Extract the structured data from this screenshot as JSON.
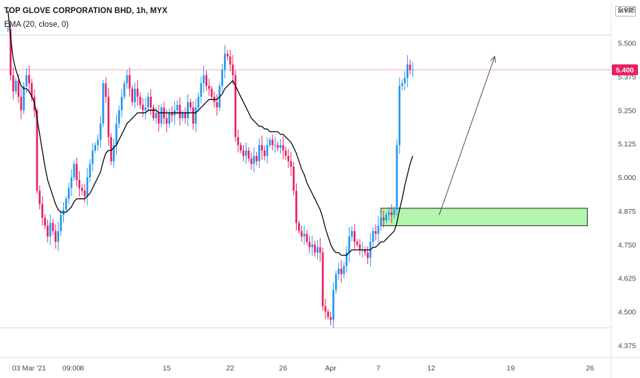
{
  "header": {
    "title": "TOP GLOVE CORPORATION BHD, 1h, MYX",
    "study": "EMA (20, close, 0)"
  },
  "currency_badge": "MYR",
  "colors": {
    "up": "#2196f3",
    "down": "#e91e63",
    "ema": "#000000",
    "zone_fill": "#a5f5a0",
    "price_line": "#f7a8c4",
    "price_label_bg": "#e91e63"
  },
  "chart_data": {
    "type": "candlestick",
    "y_ticks": [
      "5.625",
      "5.500",
      "5.375",
      "5.250",
      "5.125",
      "5.000",
      "4.875",
      "4.750",
      "4.625",
      "4.500",
      "4.375"
    ],
    "y_range": [
      4.33,
      5.66
    ],
    "x_ticks": [
      "03 Mar '21",
      "09:00",
      "8",
      "15",
      "22",
      "26",
      "Apr",
      "7",
      "12",
      "19",
      "26"
    ],
    "x_tick_bars": [
      8,
      24,
      28,
      60,
      84,
      104,
      122,
      140,
      160,
      190,
      220
    ],
    "x_range": [
      -3,
      228
    ],
    "last_price": "5.400",
    "reference_lines": [
      5.53,
      4.44
    ],
    "zone": {
      "start_bar": 141,
      "end_bar": 219,
      "top": 4.885,
      "bottom": 4.82
    },
    "projection_arrow": {
      "from": {
        "bar": 163,
        "price": 4.86
      },
      "to": {
        "bar": 184,
        "price": 5.45
      }
    },
    "series": [
      {
        "name": "Price",
        "values": [
          5.55,
          5.38,
          5.32,
          5.36,
          5.3,
          5.25,
          5.34,
          5.38,
          5.35,
          5.3,
          5.25,
          4.95,
          4.9,
          4.85,
          4.82,
          4.78,
          4.83,
          4.8,
          4.76,
          4.8,
          4.86,
          4.88,
          4.92,
          4.96,
          5.0,
          5.05,
          4.99,
          4.96,
          4.95,
          4.93,
          5.0,
          5.05,
          5.1,
          5.12,
          5.14,
          5.2,
          5.35,
          5.3,
          5.15,
          5.06,
          5.12,
          5.2,
          5.25,
          5.3,
          5.35,
          5.38,
          5.33,
          5.28,
          5.33,
          5.3,
          5.27,
          5.25,
          5.26,
          5.3,
          5.26,
          5.22,
          5.24,
          5.2,
          5.26,
          5.22,
          5.2,
          5.24,
          5.23,
          5.25,
          5.27,
          5.22,
          5.24,
          5.22,
          5.28,
          5.26,
          5.2,
          5.26,
          5.3,
          5.35,
          5.38,
          5.34,
          5.33,
          5.3,
          5.28,
          5.26,
          5.34,
          5.4,
          5.46,
          5.45,
          5.42,
          5.38,
          5.15,
          5.12,
          5.1,
          5.08,
          5.1,
          5.07,
          5.05,
          5.08,
          5.06,
          5.12,
          5.1,
          5.08,
          5.12,
          5.14,
          5.12,
          5.12,
          5.11,
          5.12,
          5.1,
          5.08,
          5.06,
          5.04,
          4.95,
          4.83,
          4.8,
          4.78,
          4.79,
          4.76,
          4.74,
          4.75,
          4.72,
          4.74,
          4.72,
          4.52,
          4.5,
          4.48,
          4.47,
          4.58,
          4.64,
          4.66,
          4.64,
          4.67,
          4.72,
          4.78,
          4.8,
          4.76,
          4.75,
          4.73,
          4.73,
          4.72,
          4.7,
          4.76,
          4.8,
          4.79,
          4.82,
          4.85,
          4.84,
          4.86,
          4.87,
          4.86,
          4.88,
          5.12,
          5.34,
          5.35,
          5.37,
          5.42,
          5.4,
          5.4
        ]
      },
      {
        "name": "EMA (20, close, 0)",
        "values": [
          5.62,
          5.52,
          5.44,
          5.4,
          5.37,
          5.34,
          5.33,
          5.33,
          5.32,
          5.3,
          5.28,
          5.22,
          5.16,
          5.1,
          5.04,
          4.99,
          4.96,
          4.93,
          4.9,
          4.88,
          4.87,
          4.87,
          4.87,
          4.88,
          4.89,
          4.91,
          4.92,
          4.92,
          4.92,
          4.92,
          4.93,
          4.94,
          4.96,
          4.98,
          5.0,
          5.02,
          5.06,
          5.09,
          5.1,
          5.1,
          5.11,
          5.12,
          5.14,
          5.16,
          5.18,
          5.2,
          5.21,
          5.22,
          5.23,
          5.24,
          5.24,
          5.24,
          5.24,
          5.25,
          5.25,
          5.25,
          5.25,
          5.24,
          5.24,
          5.24,
          5.24,
          5.24,
          5.24,
          5.24,
          5.24,
          5.24,
          5.24,
          5.24,
          5.24,
          5.24,
          5.24,
          5.24,
          5.25,
          5.26,
          5.27,
          5.28,
          5.29,
          5.29,
          5.29,
          5.29,
          5.3,
          5.31,
          5.33,
          5.34,
          5.35,
          5.36,
          5.34,
          5.32,
          5.3,
          5.28,
          5.26,
          5.24,
          5.22,
          5.21,
          5.2,
          5.19,
          5.19,
          5.18,
          5.18,
          5.17,
          5.17,
          5.17,
          5.17,
          5.16,
          5.16,
          5.15,
          5.14,
          5.13,
          5.11,
          5.09,
          5.06,
          5.03,
          5.01,
          4.98,
          4.96,
          4.94,
          4.92,
          4.9,
          4.88,
          4.85,
          4.81,
          4.78,
          4.75,
          4.73,
          4.72,
          4.72,
          4.71,
          4.71,
          4.71,
          4.72,
          4.73,
          4.73,
          4.73,
          4.73,
          4.73,
          4.73,
          4.73,
          4.73,
          4.74,
          4.74,
          4.75,
          4.76,
          4.76,
          4.77,
          4.78,
          4.79,
          4.8,
          4.83,
          4.88,
          4.92,
          4.97,
          5.01,
          5.05,
          5.08
        ]
      }
    ]
  }
}
